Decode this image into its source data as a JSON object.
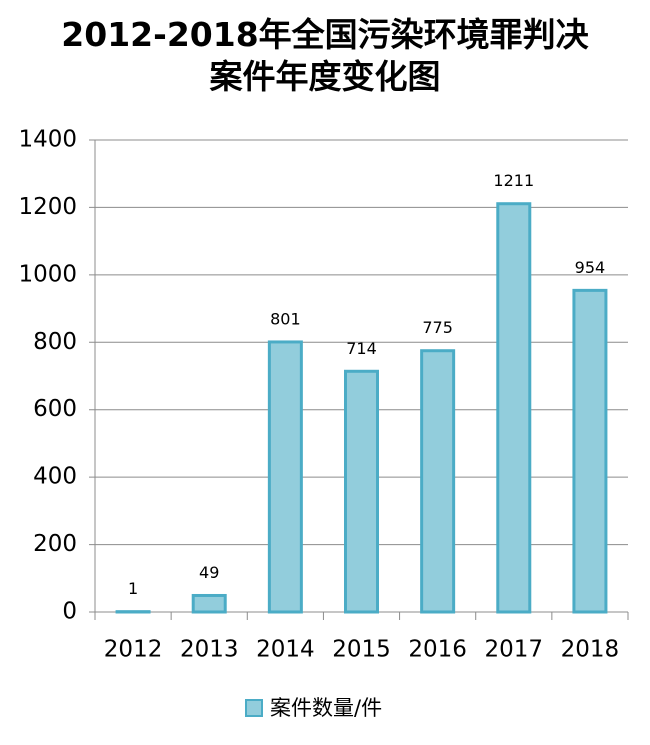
{
  "chart_data": {
    "type": "bar",
    "title": "2012-2018年全国污染环境罪判决案件年度变化图",
    "categories": [
      "2012",
      "2013",
      "2014",
      "2015",
      "2016",
      "2017",
      "2018"
    ],
    "series": [
      {
        "name": "案件数量/件",
        "color": "#92cddc",
        "values": [
          1,
          49,
          801,
          714,
          775,
          1211,
          954
        ]
      }
    ],
    "ylim": [
      0,
      1400
    ],
    "yticks": [
      0,
      200,
      400,
      600,
      800,
      1000,
      1200,
      1400
    ],
    "grid": true
  }
}
